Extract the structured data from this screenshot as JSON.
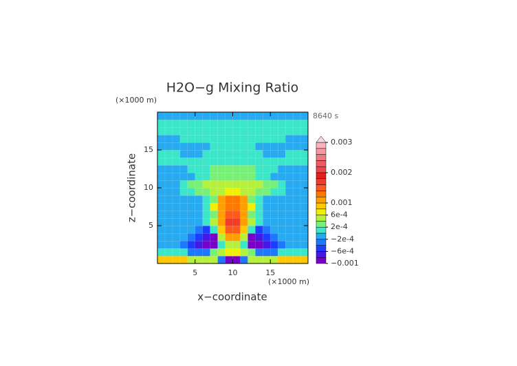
{
  "chart_data": {
    "type": "contour",
    "title": "H2O−g Mixing Ratio",
    "annotation": "8640 s",
    "x_label": "x−coordinate",
    "y_label": "z−coordinate",
    "x_unit": "(×1000 m)",
    "y_unit": "(×1000 m)",
    "xlim": [
      0,
      20
    ],
    "ylim": [
      0,
      20
    ],
    "xticks": [
      5,
      10,
      15
    ],
    "yticks": [
      5,
      10,
      15
    ],
    "grid": true,
    "x": [
      0.5,
      1.5,
      2.5,
      3.5,
      4.5,
      5.5,
      6.5,
      7.5,
      8.5,
      9.5,
      10.5,
      11.5,
      12.5,
      13.5,
      14.5,
      15.5,
      16.5,
      17.5,
      18.5,
      19.5
    ],
    "y": [
      0.5,
      1.5,
      2.5,
      3.5,
      4.5,
      5.5,
      6.5,
      7.5,
      8.5,
      9.5,
      10.5,
      11.5,
      12.5,
      13.5,
      14.5,
      15.5,
      16.5,
      17.5,
      18.5,
      19.5
    ],
    "values": [
      [
        0.0009,
        0.0009,
        0.0009,
        0.0009,
        0.0005,
        0.0005,
        0.0005,
        0.0005,
        -0.0003,
        -0.0009,
        -0.0009,
        -0.0003,
        0.0005,
        0.0005,
        0.0005,
        0.0005,
        0.0009,
        0.0009,
        0.0009,
        0.0009
      ],
      [
        0.0001,
        0.0001,
        0.0001,
        0.0001,
        -0.0003,
        -0.0003,
        -0.0003,
        0.0003,
        0.0005,
        0.0007,
        0.0007,
        0.0005,
        0.0003,
        -0.0003,
        -0.0003,
        -0.0003,
        0.0001,
        0.0001,
        0.0001,
        0.0001
      ],
      [
        -0.0001,
        -0.0001,
        -0.0001,
        -0.0003,
        -0.0005,
        -0.0007,
        -0.0009,
        -0.0011,
        0.0001,
        0.0005,
        0.0005,
        0.0001,
        -0.0011,
        -0.0009,
        -0.0007,
        -0.0005,
        -0.0003,
        -0.0001,
        -0.0001,
        -0.0001
      ],
      [
        -0.0001,
        -0.0001,
        -0.0001,
        -0.0001,
        -0.0003,
        -0.0005,
        -0.0007,
        -0.0009,
        0.0005,
        0.0011,
        0.0011,
        0.0005,
        -0.0009,
        -0.0007,
        -0.0005,
        -0.0003,
        -0.0001,
        -0.0001,
        -0.0001,
        -0.0001
      ],
      [
        -0.0001,
        -0.0001,
        -0.0001,
        -0.0001,
        -0.0001,
        -0.0003,
        -0.0005,
        0.0001,
        0.0009,
        0.0015,
        0.0015,
        0.0009,
        0.0001,
        -0.0005,
        -0.0003,
        -0.0001,
        -0.0001,
        -0.0001,
        -0.0001,
        -0.0001
      ],
      [
        -0.0001,
        -0.0001,
        -0.0001,
        -0.0001,
        -0.0001,
        -0.0001,
        0.0001,
        0.0005,
        0.0011,
        0.0017,
        0.0017,
        0.0011,
        0.0005,
        0.0001,
        -0.0001,
        -0.0001,
        -0.0001,
        -0.0001,
        -0.0001,
        -0.0001
      ],
      [
        -0.0001,
        -0.0001,
        -0.0001,
        -0.0001,
        -0.0001,
        -0.0001,
        0.0001,
        0.0003,
        0.0011,
        0.0015,
        0.0015,
        0.0011,
        0.0003,
        0.0001,
        -0.0001,
        -0.0001,
        -0.0001,
        -0.0001,
        -0.0001,
        -0.0001
      ],
      [
        -0.0001,
        -0.0001,
        -0.0001,
        -0.0001,
        -0.0001,
        -0.0001,
        0.0001,
        0.0007,
        0.0011,
        0.0013,
        0.0013,
        0.0011,
        0.0007,
        0.0001,
        -0.0001,
        -0.0001,
        -0.0001,
        -0.0001,
        -0.0001,
        -0.0001
      ],
      [
        -0.0001,
        -0.0001,
        -0.0001,
        -0.0001,
        -0.0001,
        -0.0001,
        0.0001,
        0.0003,
        0.0011,
        0.0013,
        0.0013,
        0.0011,
        0.0003,
        0.0001,
        -0.0001,
        -0.0001,
        -0.0001,
        -0.0001,
        -0.0001,
        -0.0001
      ],
      [
        -0.0001,
        -0.0001,
        -0.0001,
        0.0001,
        0.0001,
        0.0003,
        0.0003,
        0.0005,
        0.0005,
        0.0007,
        0.0007,
        0.0005,
        0.0005,
        0.0003,
        0.0003,
        0.0001,
        0.0001,
        -0.0001,
        -0.0001,
        -0.0001
      ],
      [
        -0.0001,
        -0.0001,
        -0.0001,
        0.0001,
        0.0003,
        0.0003,
        0.0005,
        0.0005,
        0.0005,
        0.0005,
        0.0005,
        0.0005,
        0.0005,
        0.0005,
        0.0003,
        0.0003,
        0.0001,
        -0.0001,
        -0.0001,
        -0.0001
      ],
      [
        -0.0001,
        -0.0001,
        -0.0001,
        -0.0001,
        -0.0001,
        0.0001,
        0.0001,
        0.0003,
        0.0003,
        0.0003,
        0.0003,
        0.0003,
        0.0003,
        0.0001,
        0.0001,
        -0.0001,
        -0.0001,
        -0.0001,
        -0.0001,
        -0.0001
      ],
      [
        -0.0001,
        -0.0001,
        -0.0001,
        -0.0001,
        0.0001,
        0.0001,
        0.0001,
        0.0003,
        0.0003,
        0.0003,
        0.0003,
        0.0003,
        0.0003,
        0.0001,
        0.0001,
        0.0001,
        -0.0001,
        -0.0001,
        -0.0001,
        -0.0001
      ],
      [
        0.0001,
        0.0001,
        0.0001,
        0.0001,
        0.0001,
        0.0001,
        0.0001,
        0.0001,
        0.0001,
        0.0001,
        0.0001,
        0.0001,
        0.0001,
        0.0001,
        0.0001,
        0.0001,
        0.0001,
        0.0001,
        0.0001,
        0.0001
      ],
      [
        0.0001,
        0.0001,
        0.0001,
        -0.0001,
        -0.0001,
        -0.0001,
        0.0001,
        0.0001,
        0.0001,
        0.0001,
        0.0001,
        0.0001,
        0.0001,
        0.0001,
        -0.0001,
        -0.0001,
        -0.0001,
        0.0001,
        0.0001,
        0.0001
      ],
      [
        -0.0001,
        -0.0001,
        -0.0001,
        -0.0001,
        -0.0001,
        -0.0001,
        -0.0001,
        0.0001,
        0.0001,
        0.0001,
        0.0001,
        0.0001,
        0.0001,
        -0.0001,
        -0.0001,
        -0.0001,
        -0.0001,
        -0.0001,
        -0.0001,
        -0.0001
      ],
      [
        -0.0001,
        -0.0001,
        -0.0001,
        0.0001,
        0.0001,
        0.0001,
        0.0001,
        0.0001,
        0.0001,
        0.0001,
        0.0001,
        0.0001,
        0.0001,
        0.0001,
        0.0001,
        0.0001,
        0.0001,
        -0.0001,
        -0.0001,
        -0.0001
      ],
      [
        0.0001,
        0.0001,
        0.0001,
        0.0001,
        0.0001,
        0.0001,
        0.0001,
        0.0001,
        0.0001,
        0.0001,
        0.0001,
        0.0001,
        0.0001,
        0.0001,
        0.0001,
        0.0001,
        0.0001,
        0.0001,
        0.0001,
        0.0001
      ],
      [
        0.0001,
        0.0001,
        0.0001,
        0.0001,
        0.0001,
        0.0001,
        0.0001,
        0.0001,
        0.0001,
        0.0001,
        0.0001,
        0.0001,
        0.0001,
        0.0001,
        0.0001,
        0.0001,
        0.0001,
        0.0001,
        0.0001,
        0.0001
      ],
      [
        -0.0001,
        -0.0001,
        -0.0001,
        -0.0001,
        -0.0001,
        -0.0001,
        -0.0001,
        -0.0001,
        -0.0001,
        -0.0001,
        -0.0001,
        -0.0001,
        -0.0001,
        -0.0001,
        -0.0001,
        -0.0001,
        -0.0001,
        -0.0001,
        -0.0001,
        -0.0001
      ]
    ],
    "levels": [
      -0.001,
      -0.0008,
      -0.0006,
      -0.0004,
      -0.0002,
      0,
      0.0002,
      0.0004,
      0.0006,
      0.0008,
      0.001,
      0.0012,
      0.0014,
      0.0016,
      0.0018,
      0.002,
      0.0022,
      0.0024,
      0.0026,
      0.0028,
      0.003
    ],
    "colors": [
      "#7800c8",
      "#4618e6",
      "#1e3cff",
      "#1e78ff",
      "#28aaf0",
      "#3ce6c8",
      "#78f078",
      "#b4f03c",
      "#f0f000",
      "#ffc800",
      "#ffa000",
      "#ff7800",
      "#ff5a1e",
      "#f03c28",
      "#e61e1e",
      "#f04646",
      "#f05a64",
      "#f07882",
      "#f596a0",
      "#fab4be"
    ],
    "over_color": "#fcd8e0",
    "cbar_ticks": [
      0.003,
      0.002,
      0.001,
      {
        "value": 0.0006,
        "label": "6e-4"
      },
      {
        "value": 0.0002,
        "label": "2e-4"
      },
      {
        "value": -0.0002,
        "label": "−2e-4"
      },
      {
        "value": -0.0006,
        "label": "−6e-4"
      },
      {
        "value": -0.001,
        "label": "−0.001"
      }
    ]
  }
}
